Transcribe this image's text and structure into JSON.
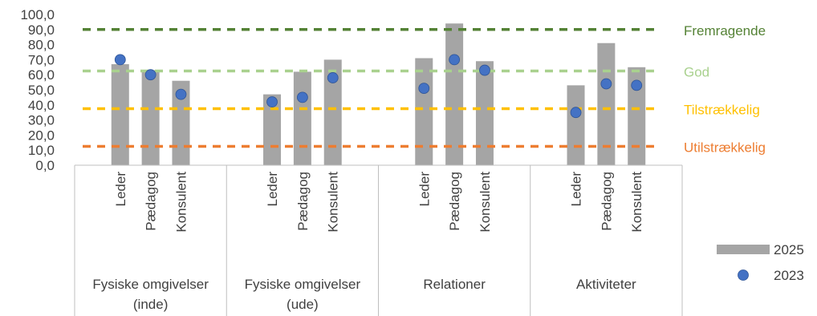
{
  "chart_data": {
    "type": "bar",
    "title": "",
    "xlabel": "",
    "ylabel": "",
    "ylim": [
      0,
      100
    ],
    "yticks": [
      "0,0",
      "10,0",
      "20,0",
      "30,0",
      "40,0",
      "50,0",
      "60,0",
      "70,0",
      "80,0",
      "90,0",
      "100,0"
    ],
    "groups": [
      {
        "label_lines": [
          "Fysiske omgivelser",
          "(inde)"
        ],
        "categories": [
          "Leder",
          "Pædagog",
          "Konsulent"
        ]
      },
      {
        "label_lines": [
          "Fysiske omgivelser",
          "(ude)"
        ],
        "categories": [
          "Leder",
          "Pædagog",
          "Konsulent"
        ]
      },
      {
        "label_lines": [
          "Relationer"
        ],
        "categories": [
          "Leder",
          "Pædagog",
          "Konsulent"
        ]
      },
      {
        "label_lines": [
          "Aktiviteter"
        ],
        "categories": [
          "Leder",
          "Pædagog",
          "Konsulent"
        ]
      }
    ],
    "series": [
      {
        "name": "2025",
        "kind": "bar",
        "color": "#a5a5a5",
        "values": [
          67,
          63,
          56,
          47,
          62,
          70,
          71,
          94,
          69,
          53,
          81,
          65
        ]
      },
      {
        "name": "2023",
        "kind": "scatter",
        "color": "#4472c4",
        "values": [
          70,
          60,
          47,
          42,
          45,
          58,
          51,
          70,
          63,
          35,
          54,
          53
        ]
      }
    ],
    "thresholds": [
      {
        "label": "Fremragende",
        "value": 90,
        "color": "#548235"
      },
      {
        "label": "God",
        "value": 62.5,
        "color": "#a9d18e"
      },
      {
        "label": "Tilstrækkelig",
        "value": 37.5,
        "color": "#ffc000"
      },
      {
        "label": "Utilstrækkelig",
        "value": 12.5,
        "color": "#ed7d31"
      }
    ],
    "legend_position": "bottom-right",
    "grid": false
  }
}
